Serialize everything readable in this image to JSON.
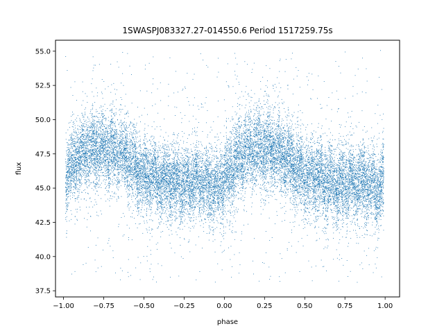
{
  "chart_data": {
    "type": "scatter",
    "title": "1SWASPJ083327.27-014550.6 Period 1517259.75s",
    "xlabel": "phase",
    "ylabel": "flux",
    "xlim": [
      -1.05,
      1.09
    ],
    "ylim": [
      37.05,
      55.8
    ],
    "x_ticks": [
      -1.0,
      -0.75,
      -0.5,
      -0.25,
      0.0,
      0.25,
      0.5,
      0.75,
      1.0
    ],
    "x_tick_labels": [
      "−1.00",
      "−0.75",
      "−0.50",
      "−0.25",
      "0.00",
      "0.25",
      "0.50",
      "0.75",
      "1.00"
    ],
    "y_ticks": [
      37.5,
      40.0,
      42.5,
      45.0,
      47.5,
      50.0,
      52.5,
      55.0
    ],
    "y_tick_labels": [
      "37.5",
      "40.0",
      "42.5",
      "45.0",
      "47.5",
      "50.0",
      "52.5",
      "55.0"
    ],
    "grid": false,
    "legend": "none",
    "marker_color": "#1f77b4",
    "series": [
      {
        "phase_range": [
          -0.99,
          0.99
        ],
        "folded_period": 1.0,
        "trend_profile": {
          "phase": [
            0.0,
            0.05,
            0.1,
            0.15,
            0.2,
            0.25,
            0.3,
            0.35,
            0.4,
            0.45,
            0.5,
            0.55,
            0.6,
            0.65,
            0.7,
            0.75,
            0.8,
            0.85,
            0.9,
            0.95,
            1.0
          ],
          "flux": [
            45.5,
            46.6,
            47.4,
            47.8,
            47.9,
            47.9,
            47.8,
            47.5,
            47.1,
            46.4,
            45.9,
            45.8,
            45.6,
            45.5,
            45.3,
            45.3,
            45.4,
            45.6,
            45.3,
            44.9,
            45.5
          ]
        },
        "core_scatter": 1.3,
        "outlier_range": [
          38.0,
          55.3
        ],
        "n_points": 19000
      }
    ]
  }
}
